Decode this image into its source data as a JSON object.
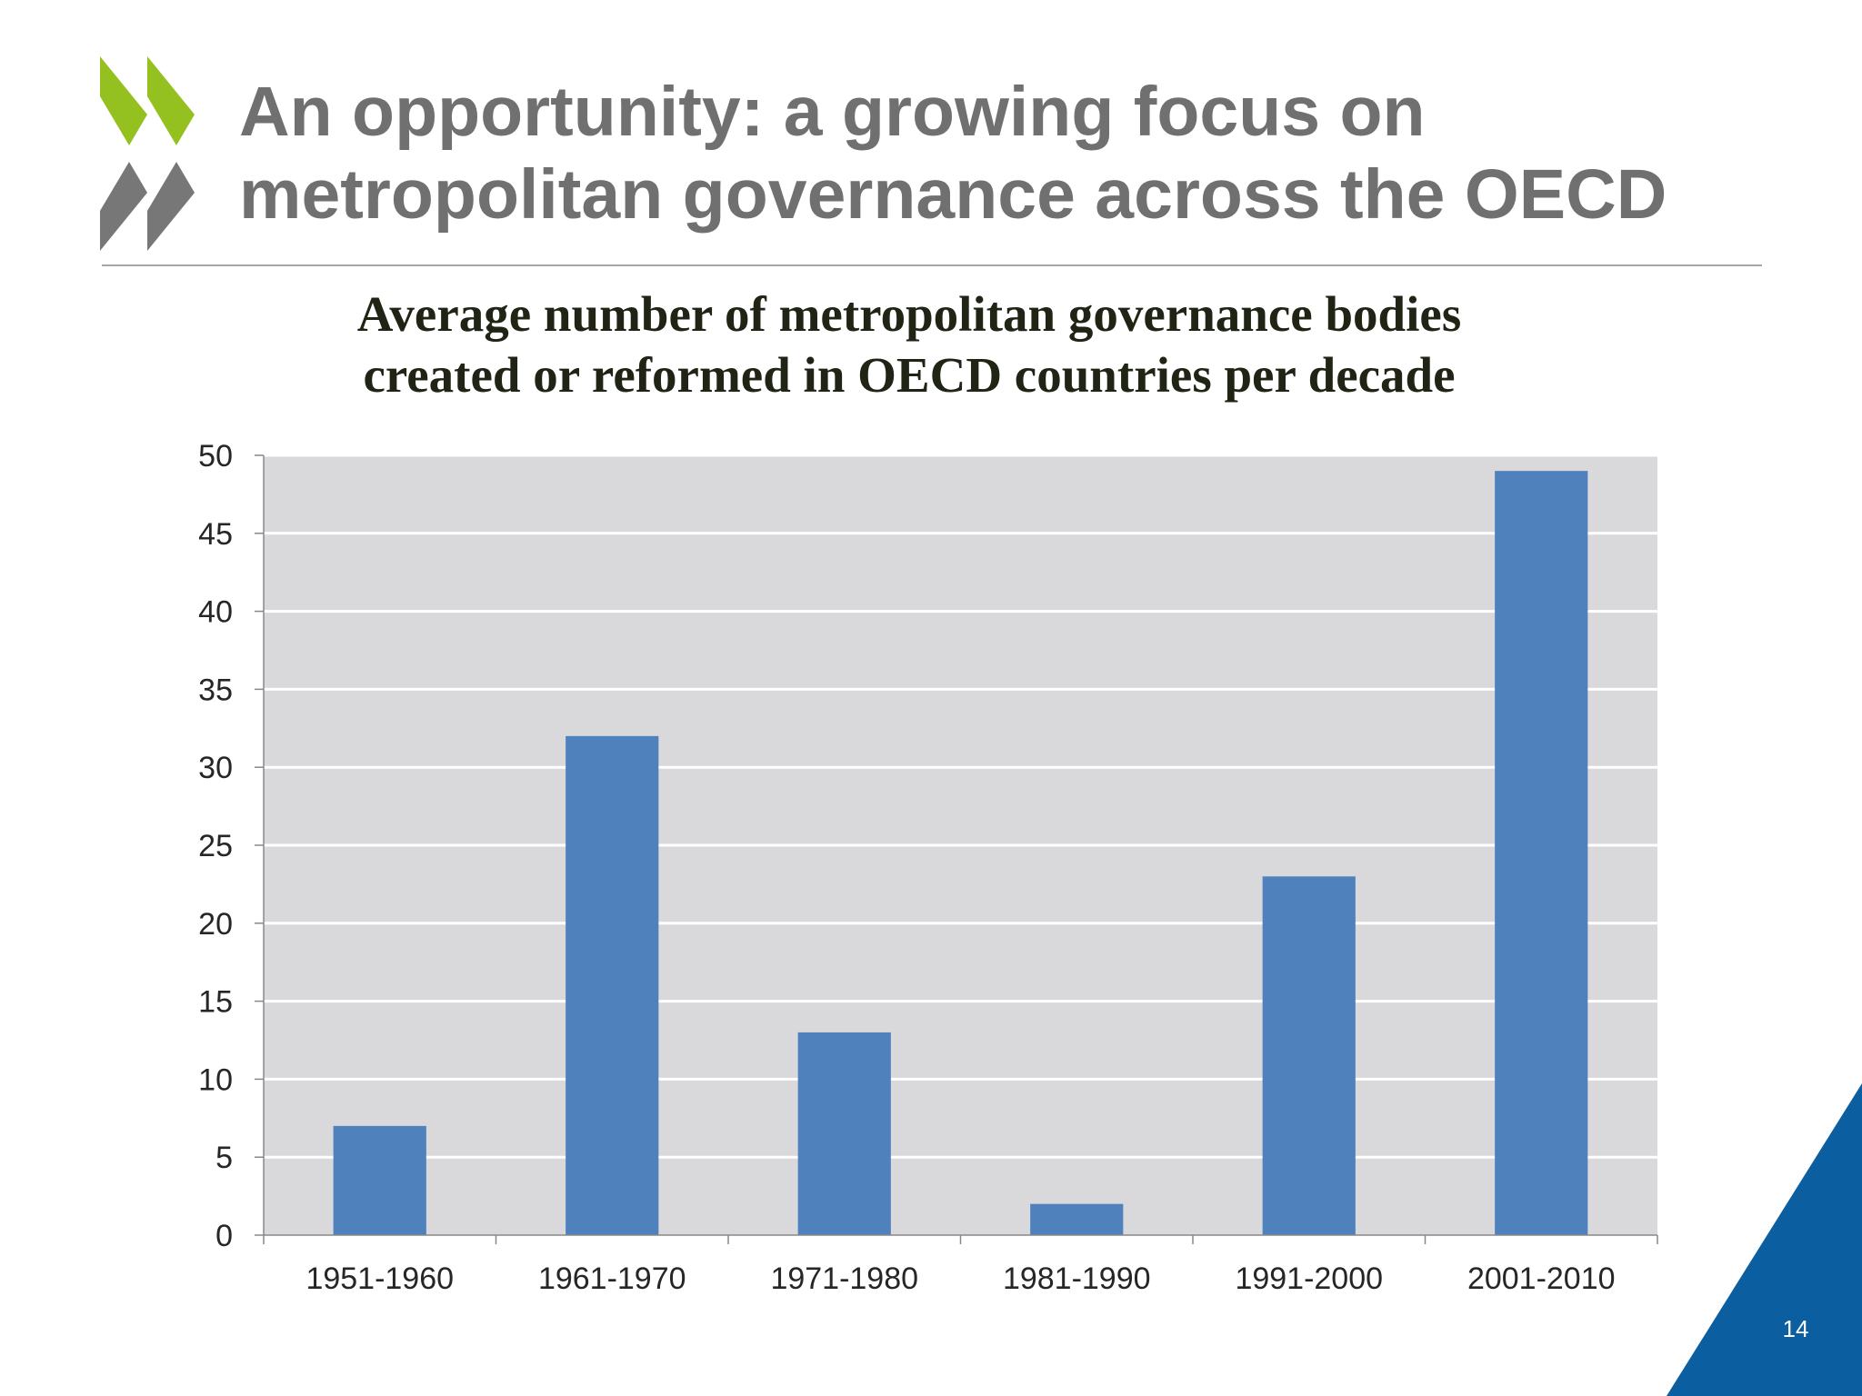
{
  "slide": {
    "title_line1": "An opportunity: a growing focus on",
    "title_line2": "metropolitan governance across the OECD",
    "page_number": "14",
    "logo": "oecd-chevron-logo",
    "colors": {
      "title": "#707070",
      "bar": "#4f81bd",
      "plot_bg": "#d9d9dc",
      "logo_green": "#94c11f",
      "logo_grey": "#777777",
      "corner_blue": "#0b5fa0"
    }
  },
  "chart_data": {
    "type": "bar",
    "title_line1": "Average number of metropolitan governance bodies",
    "title_line2": "created or reformed in OECD countries per decade",
    "categories": [
      "1951-1960",
      "1961-1970",
      "1971-1980",
      "1981-1990",
      "1991-2000",
      "2001-2010"
    ],
    "values": [
      7,
      32,
      13,
      2,
      23,
      49
    ],
    "ylim": [
      0,
      50
    ],
    "yticks": [
      0,
      5,
      10,
      15,
      20,
      25,
      30,
      35,
      40,
      45,
      50
    ],
    "xlabel": "",
    "ylabel": "",
    "grid": true,
    "legend": "none"
  }
}
